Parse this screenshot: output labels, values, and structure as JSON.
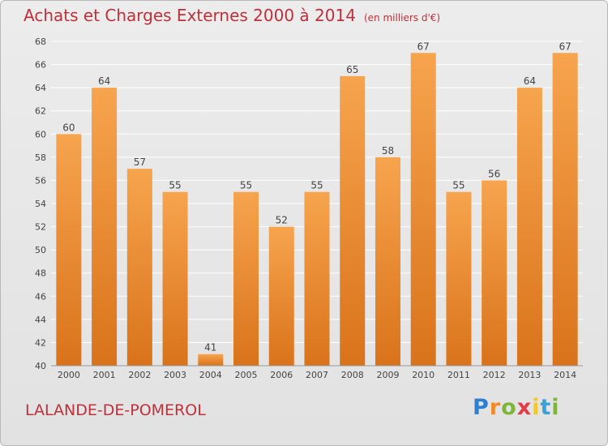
{
  "chart_data": {
    "type": "bar",
    "title": "Achats et Charges Externes 2000 à 2014",
    "subtitle": "(en milliers d'€)",
    "categories": [
      "2000",
      "2001",
      "2002",
      "2003",
      "2004",
      "2005",
      "2006",
      "2007",
      "2008",
      "2009",
      "2010",
      "2011",
      "2012",
      "2013",
      "2014"
    ],
    "values": [
      60,
      64,
      57,
      55,
      41,
      55,
      52,
      55,
      65,
      58,
      67,
      55,
      56,
      64,
      67
    ],
    "ylim": [
      40,
      68
    ],
    "yticks": [
      40,
      42,
      44,
      46,
      48,
      50,
      52,
      54,
      56,
      58,
      60,
      62,
      64,
      66,
      68
    ],
    "grid": true,
    "xlabel": "",
    "ylabel": ""
  },
  "place_name": "LALANDE-DE-POMEROL",
  "logo": {
    "letters": [
      "P",
      "r",
      "o",
      "x",
      "i",
      "t",
      "i"
    ]
  },
  "colors": {
    "bar_top": "#f7a44e",
    "bar_bottom": "#d9731b",
    "title": "#c0303a",
    "grid": "#ffffff"
  }
}
